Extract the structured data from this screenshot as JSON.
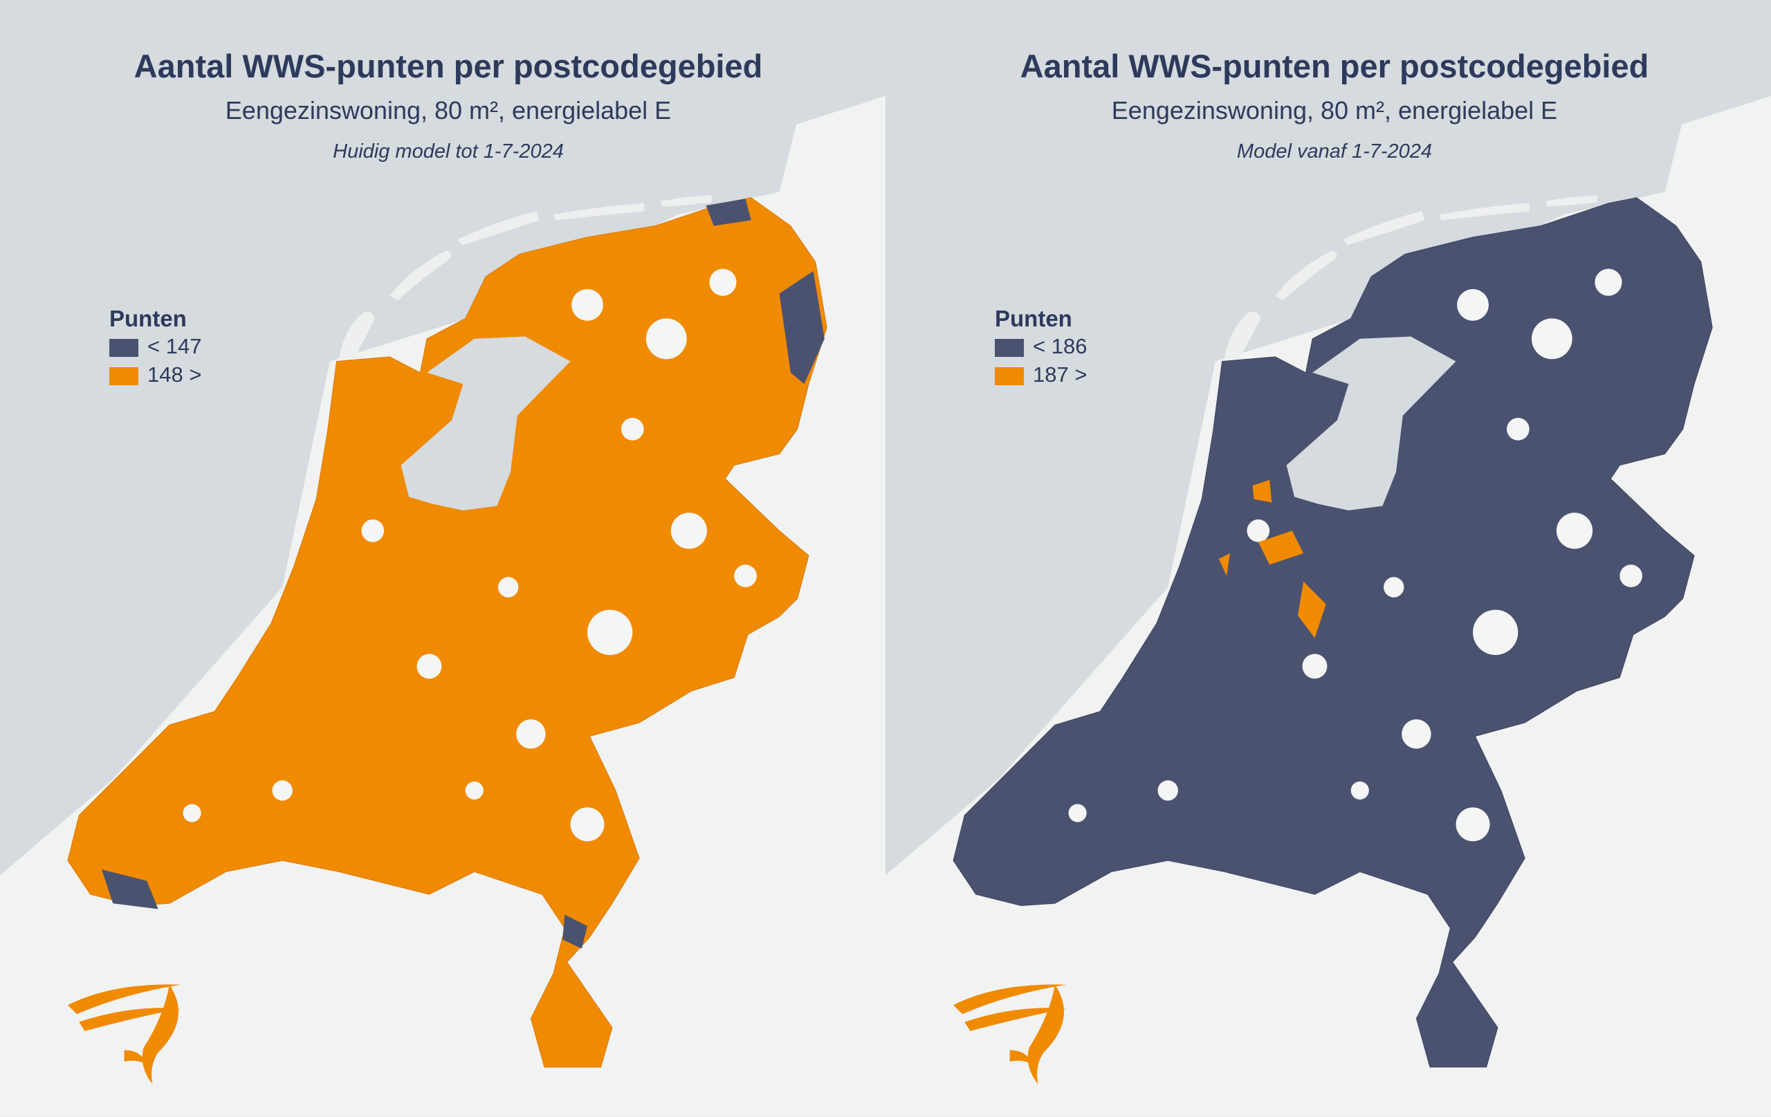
{
  "panels": [
    {
      "title": "Aantal WWS-punten per postcodegebied",
      "subtitle": "Eengezinswoning, 80 m², energielabel E",
      "model": "Huidig model tot 1-7-2024",
      "legend": {
        "title": "Punten",
        "entries": [
          {
            "label": "< 147",
            "color": "#4a5270"
          },
          {
            "label": "148 >",
            "color": "#f08a00"
          }
        ]
      }
    },
    {
      "title": "Aantal WWS-punten per postcodegebied",
      "subtitle": "Eengezinswoning, 80 m², energielabel E",
      "model": "Model vanaf 1-7-2024",
      "legend": {
        "title": "Punten",
        "entries": [
          {
            "label": "< 186",
            "color": "#4a5270"
          },
          {
            "label": "187 >",
            "color": "#f08a00"
          }
        ]
      }
    }
  ]
}
